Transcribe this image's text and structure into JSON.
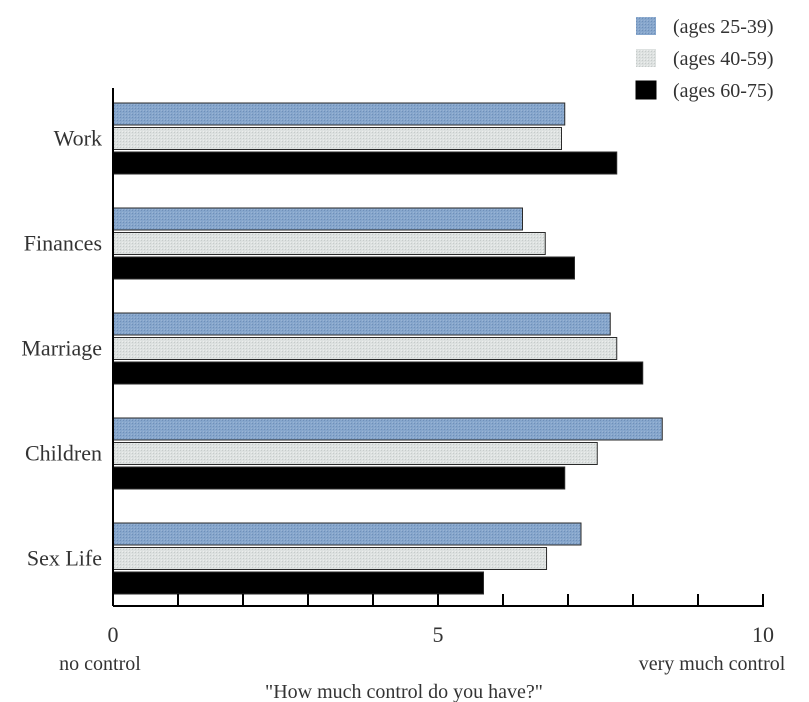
{
  "chart_data": {
    "type": "bar",
    "orientation": "horizontal",
    "categories": [
      "Work",
      "Finances",
      "Marriage",
      "Children",
      "Sex Life"
    ],
    "series": [
      {
        "name": "(ages 25-39)",
        "color": "#7f9fc6",
        "values": [
          6.95,
          6.3,
          7.65,
          8.45,
          7.2
        ]
      },
      {
        "name": "(ages 40-59)",
        "color": "#d7dcdb",
        "values": [
          6.9,
          6.65,
          7.75,
          7.45,
          6.67
        ]
      },
      {
        "name": "(ages 60-75)",
        "color": "#000000",
        "values": [
          7.75,
          7.1,
          8.15,
          6.95,
          5.7
        ]
      }
    ],
    "xlim": [
      0,
      10
    ],
    "x_major_ticks": [
      0,
      5,
      10
    ],
    "x_tick_labels": [
      "0",
      "5",
      "10"
    ],
    "x_minor_step": 1,
    "x_min_label": "no control",
    "x_max_label": "very much control",
    "xlabel": "\"How much control do you have?\"",
    "legend_position": "top-right",
    "grid": false
  }
}
